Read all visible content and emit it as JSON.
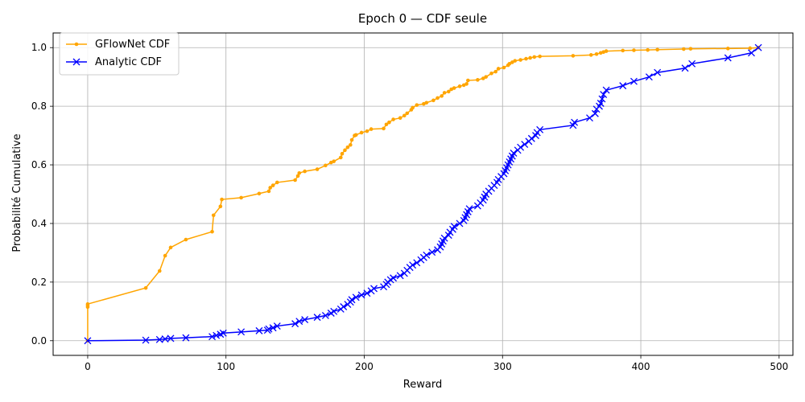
{
  "chart_data": {
    "type": "line",
    "title": "Epoch 0 — CDF seule",
    "xlabel": "Reward",
    "ylabel": "Probabilité Cumulative",
    "xlim": [
      -25,
      510
    ],
    "ylim": [
      -0.05,
      1.05
    ],
    "xticks": [
      0,
      100,
      200,
      300,
      400,
      500
    ],
    "yticks": [
      0.0,
      0.2,
      0.4,
      0.6,
      0.8,
      1.0
    ],
    "grid": true,
    "legend_position": "top-left",
    "series": [
      {
        "name": "GFlowNet CDF",
        "color": "#FFA500",
        "marker": "dot",
        "points": [
          [
            0,
            0.0
          ],
          [
            0,
            0.115
          ],
          [
            0,
            0.12
          ],
          [
            0,
            0.125
          ],
          [
            42,
            0.18
          ],
          [
            52,
            0.238
          ],
          [
            56,
            0.29
          ],
          [
            60,
            0.318
          ],
          [
            71,
            0.345
          ],
          [
            90,
            0.372
          ],
          [
            91,
            0.428
          ],
          [
            96,
            0.458
          ],
          [
            97,
            0.482
          ],
          [
            111,
            0.488
          ],
          [
            124,
            0.502
          ],
          [
            131,
            0.51
          ],
          [
            132,
            0.522
          ],
          [
            134,
            0.53
          ],
          [
            137,
            0.54
          ],
          [
            150,
            0.548
          ],
          [
            152,
            0.562
          ],
          [
            153,
            0.572
          ],
          [
            157,
            0.578
          ],
          [
            166,
            0.585
          ],
          [
            172,
            0.598
          ],
          [
            176,
            0.608
          ],
          [
            178,
            0.612
          ],
          [
            183,
            0.625
          ],
          [
            184,
            0.638
          ],
          [
            186,
            0.65
          ],
          [
            188,
            0.66
          ],
          [
            190,
            0.668
          ],
          [
            191,
            0.685
          ],
          [
            193,
            0.7
          ],
          [
            194,
            0.702
          ],
          [
            198,
            0.71
          ],
          [
            202,
            0.715
          ],
          [
            205,
            0.722
          ],
          [
            214,
            0.724
          ],
          [
            216,
            0.738
          ],
          [
            218,
            0.745
          ],
          [
            221,
            0.755
          ],
          [
            226,
            0.76
          ],
          [
            229,
            0.768
          ],
          [
            231,
            0.776
          ],
          [
            234,
            0.788
          ],
          [
            235,
            0.795
          ],
          [
            238,
            0.804
          ],
          [
            243,
            0.808
          ],
          [
            245,
            0.812
          ],
          [
            250,
            0.82
          ],
          [
            253,
            0.828
          ],
          [
            256,
            0.835
          ],
          [
            258,
            0.846
          ],
          [
            261,
            0.85
          ],
          [
            263,
            0.858
          ],
          [
            265,
            0.862
          ],
          [
            269,
            0.868
          ],
          [
            272,
            0.872
          ],
          [
            274,
            0.876
          ],
          [
            275,
            0.888
          ],
          [
            282,
            0.89
          ],
          [
            286,
            0.895
          ],
          [
            288,
            0.9
          ],
          [
            292,
            0.912
          ],
          [
            295,
            0.918
          ],
          [
            297,
            0.928
          ],
          [
            301,
            0.932
          ],
          [
            304,
            0.94
          ],
          [
            305,
            0.945
          ],
          [
            307,
            0.95
          ],
          [
            309,
            0.955
          ],
          [
            313,
            0.958
          ],
          [
            317,
            0.962
          ],
          [
            320,
            0.965
          ],
          [
            323,
            0.968
          ],
          [
            327,
            0.97
          ],
          [
            351,
            0.972
          ],
          [
            364,
            0.975
          ],
          [
            368,
            0.978
          ],
          [
            371,
            0.982
          ],
          [
            373,
            0.985
          ],
          [
            375,
            0.988
          ],
          [
            387,
            0.99
          ],
          [
            395,
            0.991
          ],
          [
            405,
            0.992
          ],
          [
            412,
            0.993
          ],
          [
            431,
            0.995
          ],
          [
            436,
            0.996
          ],
          [
            463,
            0.997
          ],
          [
            479,
            0.998
          ],
          [
            485,
            1.0
          ]
        ]
      },
      {
        "name": "Analytic CDF",
        "color": "#0000FF",
        "marker": "x",
        "points": [
          [
            0,
            0.0
          ],
          [
            42,
            0.002
          ],
          [
            52,
            0.004
          ],
          [
            56,
            0.006
          ],
          [
            60,
            0.008
          ],
          [
            71,
            0.01
          ],
          [
            90,
            0.014
          ],
          [
            93,
            0.018
          ],
          [
            96,
            0.022
          ],
          [
            98,
            0.026
          ],
          [
            111,
            0.03
          ],
          [
            124,
            0.034
          ],
          [
            130,
            0.036
          ],
          [
            131,
            0.04
          ],
          [
            134,
            0.044
          ],
          [
            137,
            0.05
          ],
          [
            150,
            0.058
          ],
          [
            153,
            0.066
          ],
          [
            157,
            0.072
          ],
          [
            166,
            0.08
          ],
          [
            172,
            0.086
          ],
          [
            176,
            0.094
          ],
          [
            178,
            0.1
          ],
          [
            183,
            0.108
          ],
          [
            185,
            0.116
          ],
          [
            188,
            0.124
          ],
          [
            190,
            0.132
          ],
          [
            191,
            0.14
          ],
          [
            194,
            0.148
          ],
          [
            198,
            0.156
          ],
          [
            202,
            0.162
          ],
          [
            205,
            0.17
          ],
          [
            207,
            0.178
          ],
          [
            214,
            0.184
          ],
          [
            216,
            0.192
          ],
          [
            217,
            0.2
          ],
          [
            219,
            0.208
          ],
          [
            221,
            0.214
          ],
          [
            226,
            0.222
          ],
          [
            229,
            0.23
          ],
          [
            231,
            0.24
          ],
          [
            233,
            0.25
          ],
          [
            235,
            0.258
          ],
          [
            238,
            0.266
          ],
          [
            241,
            0.276
          ],
          [
            243,
            0.284
          ],
          [
            245,
            0.292
          ],
          [
            249,
            0.302
          ],
          [
            253,
            0.31
          ],
          [
            255,
            0.32
          ],
          [
            256,
            0.33
          ],
          [
            257,
            0.34
          ],
          [
            258,
            0.35
          ],
          [
            261,
            0.36
          ],
          [
            262,
            0.37
          ],
          [
            264,
            0.38
          ],
          [
            265,
            0.39
          ],
          [
            269,
            0.4
          ],
          [
            272,
            0.41
          ],
          [
            273,
            0.42
          ],
          [
            274,
            0.43
          ],
          [
            275,
            0.44
          ],
          [
            276,
            0.45
          ],
          [
            282,
            0.46
          ],
          [
            284,
            0.47
          ],
          [
            286,
            0.48
          ],
          [
            287,
            0.49
          ],
          [
            288,
            0.5
          ],
          [
            290,
            0.51
          ],
          [
            292,
            0.52
          ],
          [
            294,
            0.53
          ],
          [
            296,
            0.54
          ],
          [
            297,
            0.55
          ],
          [
            299,
            0.56
          ],
          [
            301,
            0.57
          ],
          [
            302,
            0.58
          ],
          [
            303,
            0.59
          ],
          [
            304,
            0.6
          ],
          [
            305,
            0.61
          ],
          [
            306,
            0.62
          ],
          [
            307,
            0.63
          ],
          [
            308,
            0.64
          ],
          [
            311,
            0.65
          ],
          [
            313,
            0.66
          ],
          [
            316,
            0.67
          ],
          [
            319,
            0.68
          ],
          [
            321,
            0.69
          ],
          [
            324,
            0.7
          ],
          [
            325,
            0.71
          ],
          [
            327,
            0.72
          ],
          [
            351,
            0.735
          ],
          [
            352,
            0.745
          ],
          [
            363,
            0.76
          ],
          [
            367,
            0.775
          ],
          [
            368,
            0.79
          ],
          [
            370,
            0.8
          ],
          [
            371,
            0.81
          ],
          [
            372,
            0.825
          ],
          [
            373,
            0.84
          ],
          [
            375,
            0.855
          ],
          [
            387,
            0.87
          ],
          [
            395,
            0.885
          ],
          [
            406,
            0.9
          ],
          [
            412,
            0.915
          ],
          [
            432,
            0.93
          ],
          [
            437,
            0.945
          ],
          [
            463,
            0.965
          ],
          [
            480,
            0.982
          ],
          [
            485,
            1.0
          ]
        ]
      }
    ]
  }
}
